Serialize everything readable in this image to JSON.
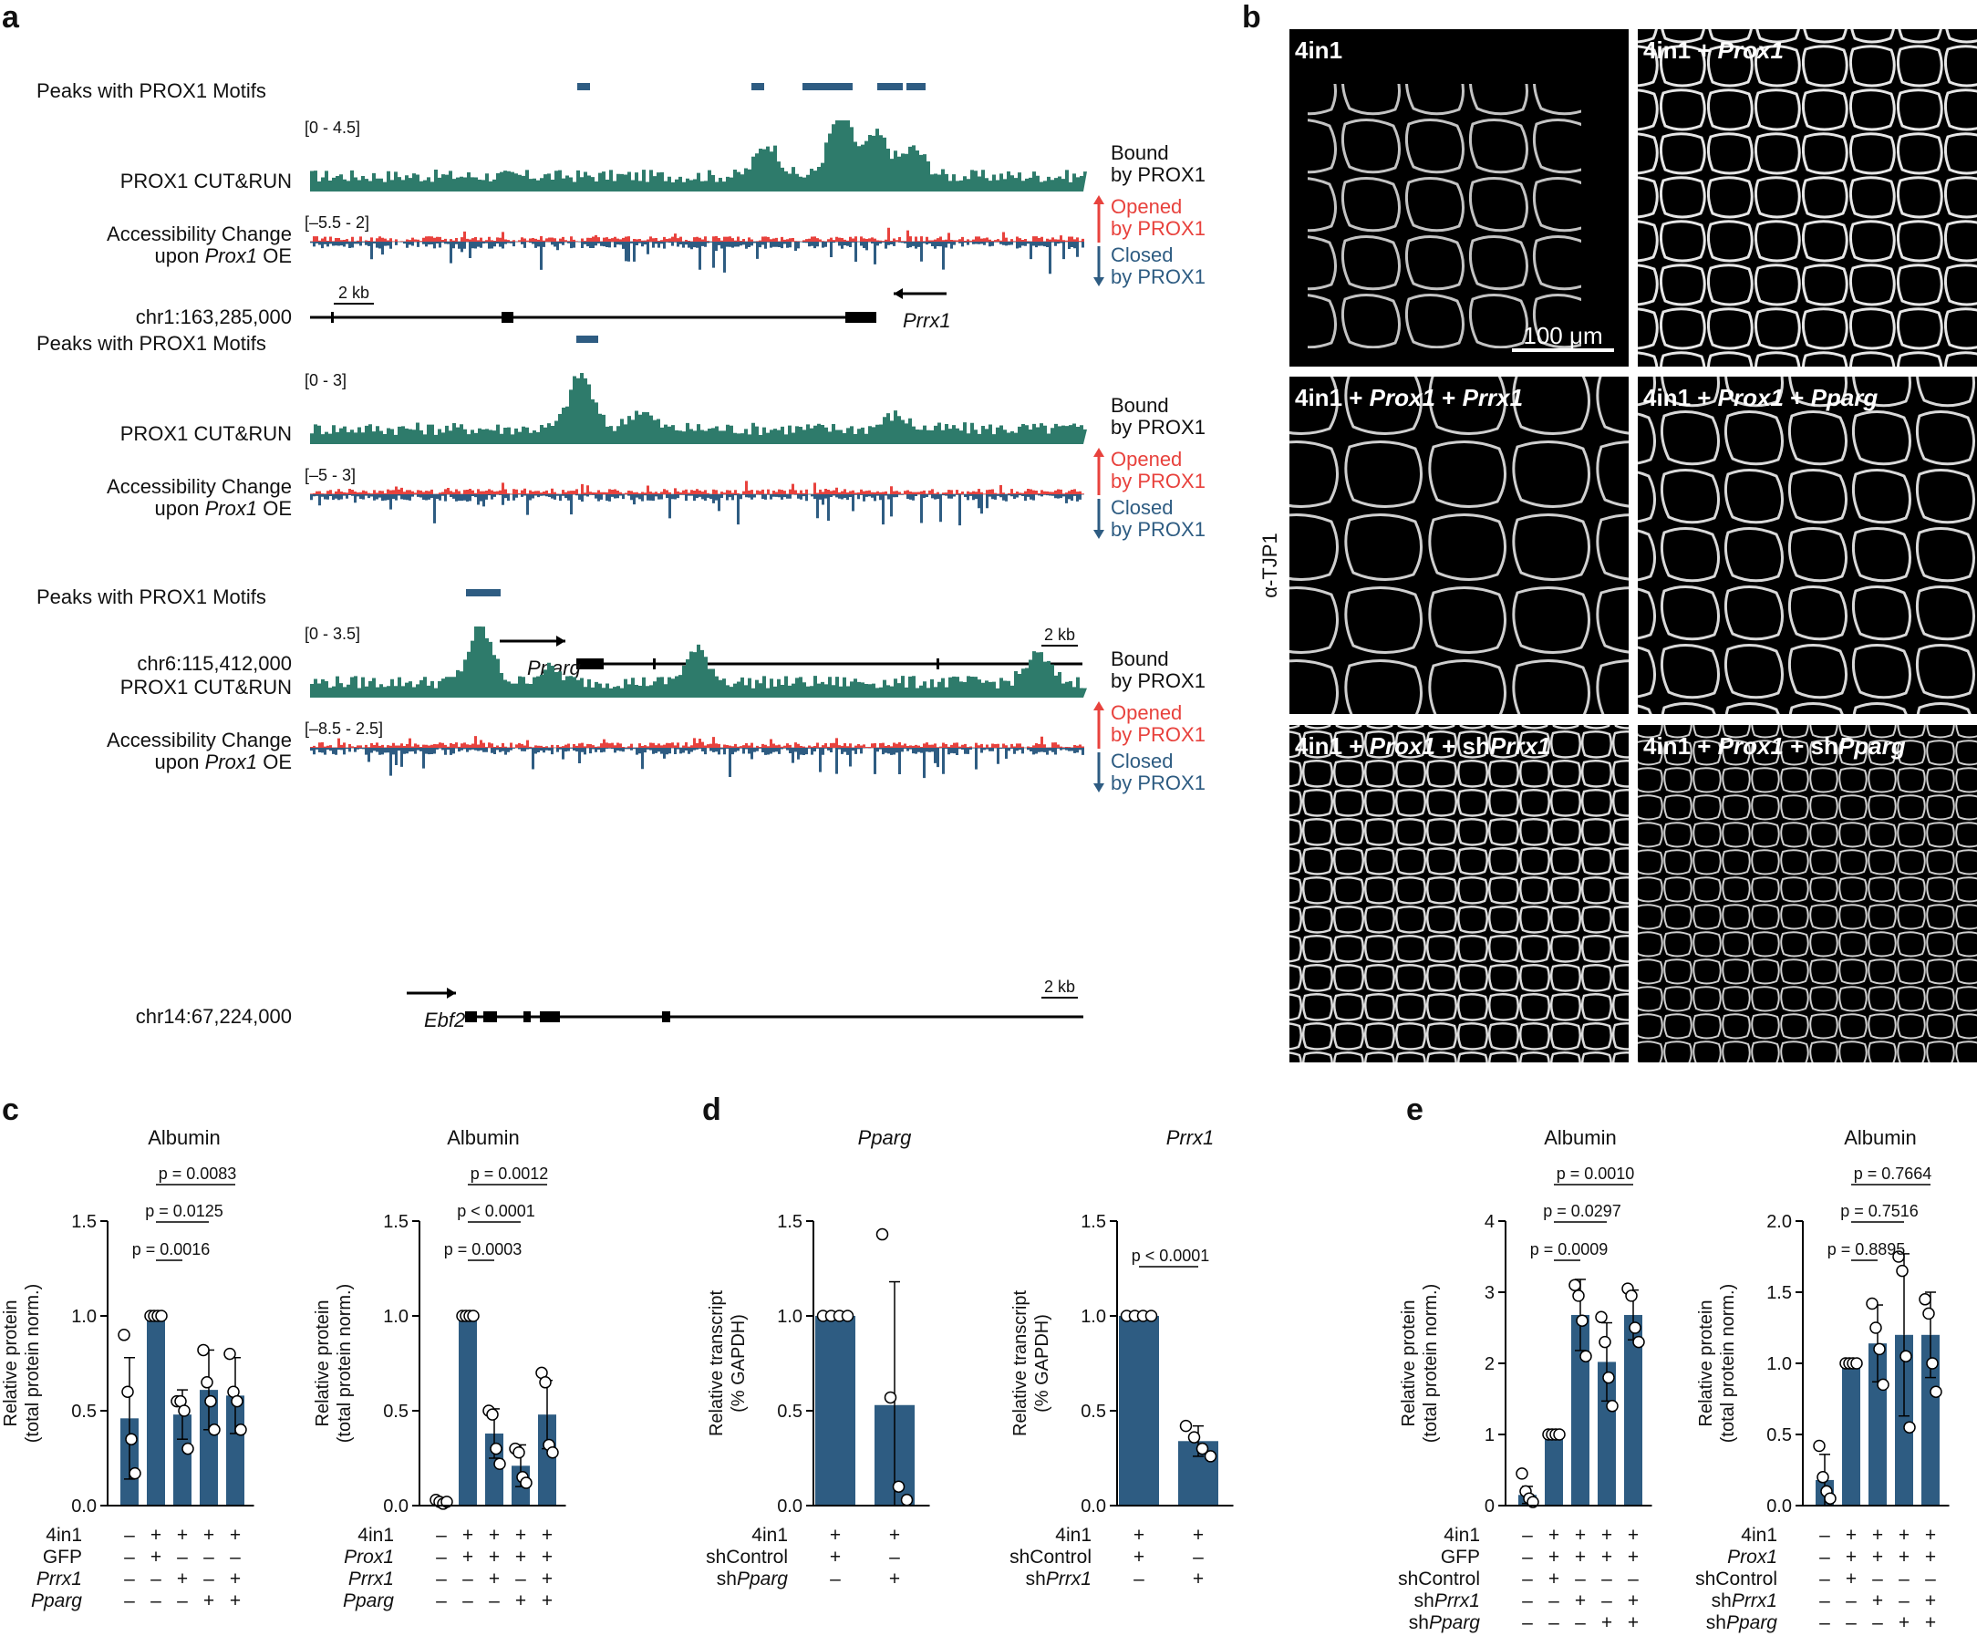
{
  "colors": {
    "cutrun": "#2e7b6b",
    "opened": "#e8423d",
    "closed": "#2e5c82",
    "bar": "#2e5c82",
    "motif": "#2e5c82",
    "gene": "#000000"
  },
  "panel_a": {
    "label": "a",
    "motif_label": "Peaks with PROX1 Motifs",
    "cutrun_label": "PROX1 CUT&RUN",
    "acc_label_1": "Accessibility Change",
    "acc_label_2_pre": "upon ",
    "acc_label_2_ital": "Prox1",
    "acc_label_2_post": " OE",
    "bound_1": "Bound",
    "bound_2": "by PROX1",
    "opened_1": "Opened",
    "opened_2": "by PROX1",
    "closed_1": "Closed",
    "closed_2": "by PROX1",
    "scale": "2 kb",
    "tracks": [
      {
        "cut_range": "[0 - 4.5]",
        "acc_range": "[–5.5 - 2]",
        "coord": "chr1:163,285,000",
        "gene": "Prrx1",
        "strand": "minus"
      },
      {
        "cut_range": "[0 - 3]",
        "acc_range": "[–5 - 3]",
        "coord": "chr6:115,412,000",
        "gene": "Pparg",
        "strand": "plus"
      },
      {
        "cut_range": "[0 - 3.5]",
        "acc_range": "[–8.5 - 2.5]",
        "coord": "chr14:67,224,000",
        "gene": "Ebf2",
        "strand": "plus"
      }
    ]
  },
  "panel_b": {
    "label": "b",
    "axis_label": "α-TJP1",
    "scale_bar": "100 μm",
    "images": [
      {
        "plain": "4in1",
        "ital": "",
        "tail": "",
        "tail_ital": ""
      },
      {
        "plain": "4in1 + ",
        "ital": "Prox1",
        "tail": "",
        "tail_ital": ""
      },
      {
        "plain": "4in1 + ",
        "ital": "Prox1",
        "tail": " + ",
        "tail_ital": "Prrx1"
      },
      {
        "plain": "4in1 + ",
        "ital": "Prox1",
        "tail": " + ",
        "tail_ital": "Pparg"
      },
      {
        "plain": "4in1 + ",
        "ital": "Prox1",
        "tail": " + sh",
        "tail_ital": "Prrx1"
      },
      {
        "plain": "4in1 + ",
        "ital": "Prox1",
        "tail": " + sh",
        "tail_ital": "Pparg"
      }
    ]
  },
  "panel_c": {
    "label": "c"
  },
  "panel_d": {
    "label": "d"
  },
  "panel_e": {
    "label": "e"
  },
  "chart_data": [
    {
      "type": "bar",
      "panel": "c",
      "title": "Albumin",
      "ylabel": "Relative protein (total protein norm.)",
      "ylim": [
        0,
        1.5
      ],
      "yticks": [
        "0.0",
        "0.5",
        "1.0",
        "1.5"
      ],
      "values": [
        0.46,
        1.0,
        0.48,
        0.61,
        0.58
      ],
      "err": [
        0.32,
        0.0,
        0.13,
        0.21,
        0.2
      ],
      "points": [
        [
          0.9,
          0.6,
          0.35,
          0.17
        ],
        [
          1.0,
          1.0,
          1.0,
          1.0
        ],
        [
          0.55,
          0.55,
          0.5,
          0.3
        ],
        [
          0.82,
          0.65,
          0.55,
          0.4
        ],
        [
          0.8,
          0.6,
          0.55,
          0.4
        ]
      ],
      "conditions": [
        {
          "name": "4in1",
          "ital": false,
          "signs": [
            "–",
            "+",
            "+",
            "+",
            "+"
          ]
        },
        {
          "name": "GFP",
          "ital": false,
          "signs": [
            "–",
            "+",
            "–",
            "–",
            "–"
          ]
        },
        {
          "name": "Prrx1",
          "ital": true,
          "signs": [
            "–",
            "–",
            "+",
            "–",
            "+"
          ]
        },
        {
          "name": "Pparg",
          "ital": true,
          "signs": [
            "–",
            "–",
            "–",
            "+",
            "+"
          ]
        }
      ],
      "pvalues": [
        {
          "text": "p = 0.0083",
          "from": 1,
          "to": 4
        },
        {
          "text": "p = 0.0125",
          "from": 1,
          "to": 3
        },
        {
          "text": "p = 0.0016",
          "from": 1,
          "to": 2
        }
      ]
    },
    {
      "type": "bar",
      "panel": "c",
      "title": "Albumin",
      "ylabel": "Relative protein (total protein norm.)",
      "ylim": [
        0,
        1.5
      ],
      "yticks": [
        "0.0",
        "0.5",
        "1.0",
        "1.5"
      ],
      "values": [
        0.02,
        1.0,
        0.38,
        0.21,
        0.48
      ],
      "err": [
        0.01,
        0.0,
        0.13,
        0.11,
        0.18
      ],
      "points": [
        [
          0.03,
          0.02,
          0.01,
          0.02
        ],
        [
          1.0,
          1.0,
          1.0,
          1.0
        ],
        [
          0.5,
          0.48,
          0.3,
          0.22
        ],
        [
          0.3,
          0.28,
          0.15,
          0.12
        ],
        [
          0.7,
          0.65,
          0.32,
          0.28
        ]
      ],
      "conditions": [
        {
          "name": "4in1",
          "ital": false,
          "signs": [
            "–",
            "+",
            "+",
            "+",
            "+"
          ]
        },
        {
          "name": "Prox1",
          "ital": true,
          "signs": [
            "–",
            "+",
            "+",
            "+",
            "+"
          ]
        },
        {
          "name": "Prrx1",
          "ital": true,
          "signs": [
            "–",
            "–",
            "+",
            "–",
            "+"
          ]
        },
        {
          "name": "Pparg",
          "ital": true,
          "signs": [
            "–",
            "–",
            "–",
            "+",
            "+"
          ]
        }
      ],
      "pvalues": [
        {
          "text": "p = 0.0012",
          "from": 1,
          "to": 4
        },
        {
          "text": "p < 0.0001",
          "from": 1,
          "to": 3
        },
        {
          "text": "p = 0.0003",
          "from": 1,
          "to": 2
        }
      ]
    },
    {
      "type": "bar",
      "panel": "d",
      "title": "Pparg",
      "title_ital": true,
      "ylabel": "Relative transcript (% GAPDH)",
      "ylim": [
        0,
        1.5
      ],
      "yticks": [
        "0.0",
        "0.5",
        "1.0",
        "1.5"
      ],
      "values": [
        1.0,
        0.53
      ],
      "err": [
        0.0,
        0.65
      ],
      "points": [
        [
          1.0,
          1.0,
          1.0,
          1.0
        ],
        [
          1.43,
          0.57,
          0.1,
          0.03
        ]
      ],
      "conditions": [
        {
          "name": "4in1",
          "ital": false,
          "signs": [
            "+",
            "+"
          ]
        },
        {
          "name": "shControl",
          "ital": false,
          "signs": [
            "+",
            "–"
          ]
        },
        {
          "name": "shPparg",
          "ital": false,
          "prefix": "sh",
          "ital_part": "Pparg",
          "signs": [
            "–",
            "+"
          ]
        }
      ],
      "pvalues": []
    },
    {
      "type": "bar",
      "panel": "d",
      "title": "Prrx1",
      "title_ital": true,
      "ylabel": "Relative transcript (% GAPDH)",
      "ylim": [
        0,
        1.5
      ],
      "yticks": [
        "0.0",
        "0.5",
        "1.0",
        "1.5"
      ],
      "values": [
        1.0,
        0.34
      ],
      "err": [
        0.0,
        0.08
      ],
      "points": [
        [
          1.0,
          1.0,
          1.0,
          1.0
        ],
        [
          0.42,
          0.36,
          0.3,
          0.26
        ]
      ],
      "conditions": [
        {
          "name": "4in1",
          "ital": false,
          "signs": [
            "+",
            "+"
          ]
        },
        {
          "name": "shControl",
          "ital": false,
          "signs": [
            "+",
            "–"
          ]
        },
        {
          "name": "shPrrx1",
          "ital": false,
          "prefix": "sh",
          "ital_part": "Prrx1",
          "signs": [
            "–",
            "+"
          ]
        }
      ],
      "pvalues": [
        {
          "text": "p < 0.0001",
          "from": 0,
          "to": 1
        }
      ]
    },
    {
      "type": "bar",
      "panel": "e",
      "title": "Albumin",
      "ylabel": "Relative protein (total protein norm.)",
      "ylim": [
        0,
        4
      ],
      "yticks": [
        "0",
        "1",
        "2",
        "3",
        "4"
      ],
      "values": [
        0.15,
        1.0,
        2.68,
        2.02,
        2.68
      ],
      "err": [
        0.12,
        0.0,
        0.5,
        0.55,
        0.35
      ],
      "points": [
        [
          0.45,
          0.2,
          0.1,
          0.05
        ],
        [
          1.0,
          1.0,
          1.0,
          1.0
        ],
        [
          3.1,
          2.95,
          2.6,
          2.1
        ],
        [
          2.65,
          2.3,
          1.8,
          1.4
        ],
        [
          3.05,
          2.95,
          2.5,
          2.3
        ]
      ],
      "conditions": [
        {
          "name": "4in1",
          "ital": false,
          "signs": [
            "–",
            "+",
            "+",
            "+",
            "+"
          ]
        },
        {
          "name": "GFP",
          "ital": false,
          "signs": [
            "–",
            "+",
            "+",
            "+",
            "+"
          ]
        },
        {
          "name": "shControl",
          "ital": false,
          "signs": [
            "–",
            "+",
            "–",
            "–",
            "–"
          ]
        },
        {
          "name": "shPrrx1",
          "ital": false,
          "prefix": "sh",
          "ital_part": "Prrx1",
          "signs": [
            "–",
            "–",
            "+",
            "–",
            "+"
          ]
        },
        {
          "name": "shPparg",
          "ital": false,
          "prefix": "sh",
          "ital_part": "Pparg",
          "signs": [
            "–",
            "–",
            "–",
            "+",
            "+"
          ]
        }
      ],
      "pvalues": [
        {
          "text": "p = 0.0010",
          "from": 1,
          "to": 4
        },
        {
          "text": "p = 0.0297",
          "from": 1,
          "to": 3
        },
        {
          "text": "p = 0.0009",
          "from": 1,
          "to": 2
        }
      ]
    },
    {
      "type": "bar",
      "panel": "e",
      "title": "Albumin",
      "ylabel": "Relative protein (total protein norm.)",
      "ylim": [
        0,
        2.0
      ],
      "yticks": [
        "0.0",
        "0.5",
        "1.0",
        "1.5",
        "2.0"
      ],
      "values": [
        0.18,
        1.0,
        1.14,
        1.2,
        1.2
      ],
      "err": [
        0.18,
        0.0,
        0.27,
        0.57,
        0.3
      ],
      "points": [
        [
          0.42,
          0.2,
          0.1,
          0.05
        ],
        [
          1.0,
          1.0,
          1.0,
          1.0
        ],
        [
          1.42,
          1.25,
          1.1,
          0.85
        ],
        [
          1.75,
          1.65,
          1.05,
          0.55
        ],
        [
          1.45,
          1.35,
          1.0,
          0.8
        ]
      ],
      "conditions": [
        {
          "name": "4in1",
          "ital": false,
          "signs": [
            "–",
            "+",
            "+",
            "+",
            "+"
          ]
        },
        {
          "name": "Prox1",
          "ital": true,
          "signs": [
            "–",
            "+",
            "+",
            "+",
            "+"
          ]
        },
        {
          "name": "shControl",
          "ital": false,
          "signs": [
            "–",
            "+",
            "–",
            "–",
            "–"
          ]
        },
        {
          "name": "shPrrx1",
          "ital": false,
          "prefix": "sh",
          "ital_part": "Prrx1",
          "signs": [
            "–",
            "–",
            "+",
            "–",
            "+"
          ]
        },
        {
          "name": "shPparg",
          "ital": false,
          "prefix": "sh",
          "ital_part": "Pparg",
          "signs": [
            "–",
            "–",
            "–",
            "+",
            "+"
          ]
        }
      ],
      "pvalues": [
        {
          "text": "p = 0.7664",
          "from": 1,
          "to": 4
        },
        {
          "text": "p = 0.7516",
          "from": 1,
          "to": 3
        },
        {
          "text": "p = 0.8895",
          "from": 1,
          "to": 2
        }
      ]
    }
  ]
}
